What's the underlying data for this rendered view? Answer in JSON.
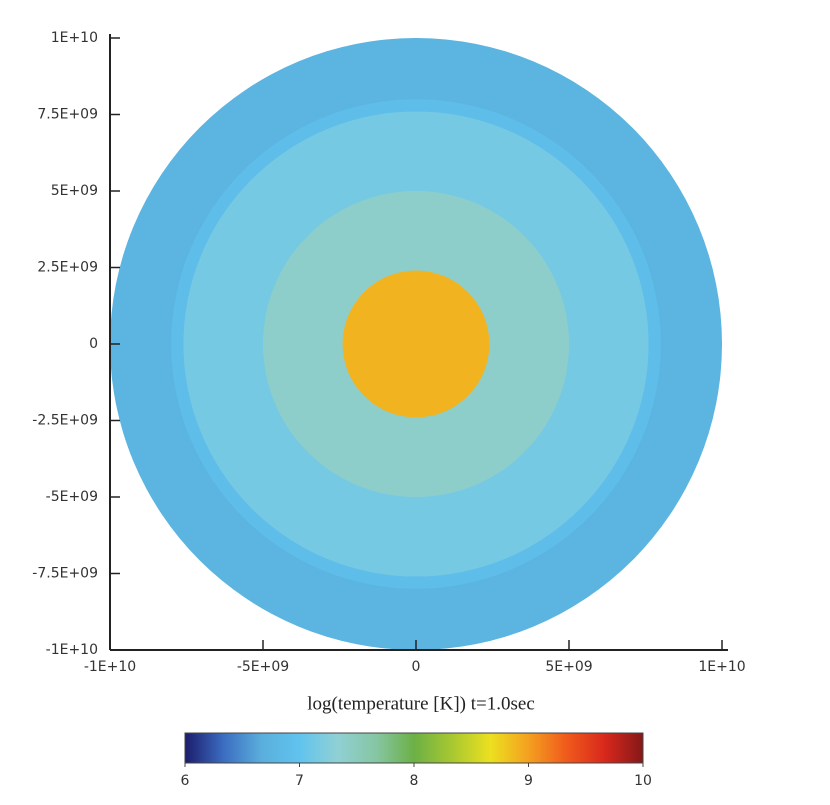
{
  "chart_data": {
    "type": "radial-map",
    "xlabel": "log(temperature [K]) t=1.0sec",
    "xlim": [
      -10000000000,
      10000000000
    ],
    "ylim": [
      -10000000000,
      10000000000
    ],
    "xticks": [
      {
        "value": -10000000000,
        "label": "-1E+10"
      },
      {
        "value": -5000000000,
        "label": "-5E+09"
      },
      0,
      {
        "value": 5000000000,
        "label": "5E+09"
      },
      {
        "value": 10000000000,
        "label": "1E+10"
      }
    ],
    "yticks": [
      {
        "value": 10000000000,
        "label": "1E+10"
      },
      {
        "value": 7500000000,
        "label": "7.5E+09"
      },
      {
        "value": 5000000000,
        "label": "5E+09"
      },
      {
        "value": 2500000000,
        "label": "2.5E+09"
      },
      0,
      {
        "value": -2500000000,
        "label": "-2.5E+09"
      },
      {
        "value": -5000000000,
        "label": "-5E+09"
      },
      {
        "value": -7500000000,
        "label": "-7.5E+09"
      },
      {
        "value": -10000000000,
        "label": "-1E+10"
      }
    ],
    "r": [
      10000000000,
      8000000000,
      7600000000,
      5000000000,
      2400000000
    ],
    "values": [
      6.75,
      6.9,
      7.15,
      7.4,
      8.9
    ],
    "colorbar": {
      "lim": [
        6,
        10
      ],
      "ticks": [
        6,
        7,
        8,
        9,
        10
      ]
    },
    "colormap": [
      "#1c1c6c",
      "#3b6cc0",
      "#5aaedc",
      "#60c4ee",
      "#90d0d4",
      "#86c6a4",
      "#6cb046",
      "#a8c830",
      "#ece020",
      "#f4a020",
      "#f05a1c",
      "#d8281c",
      "#841818"
    ]
  }
}
